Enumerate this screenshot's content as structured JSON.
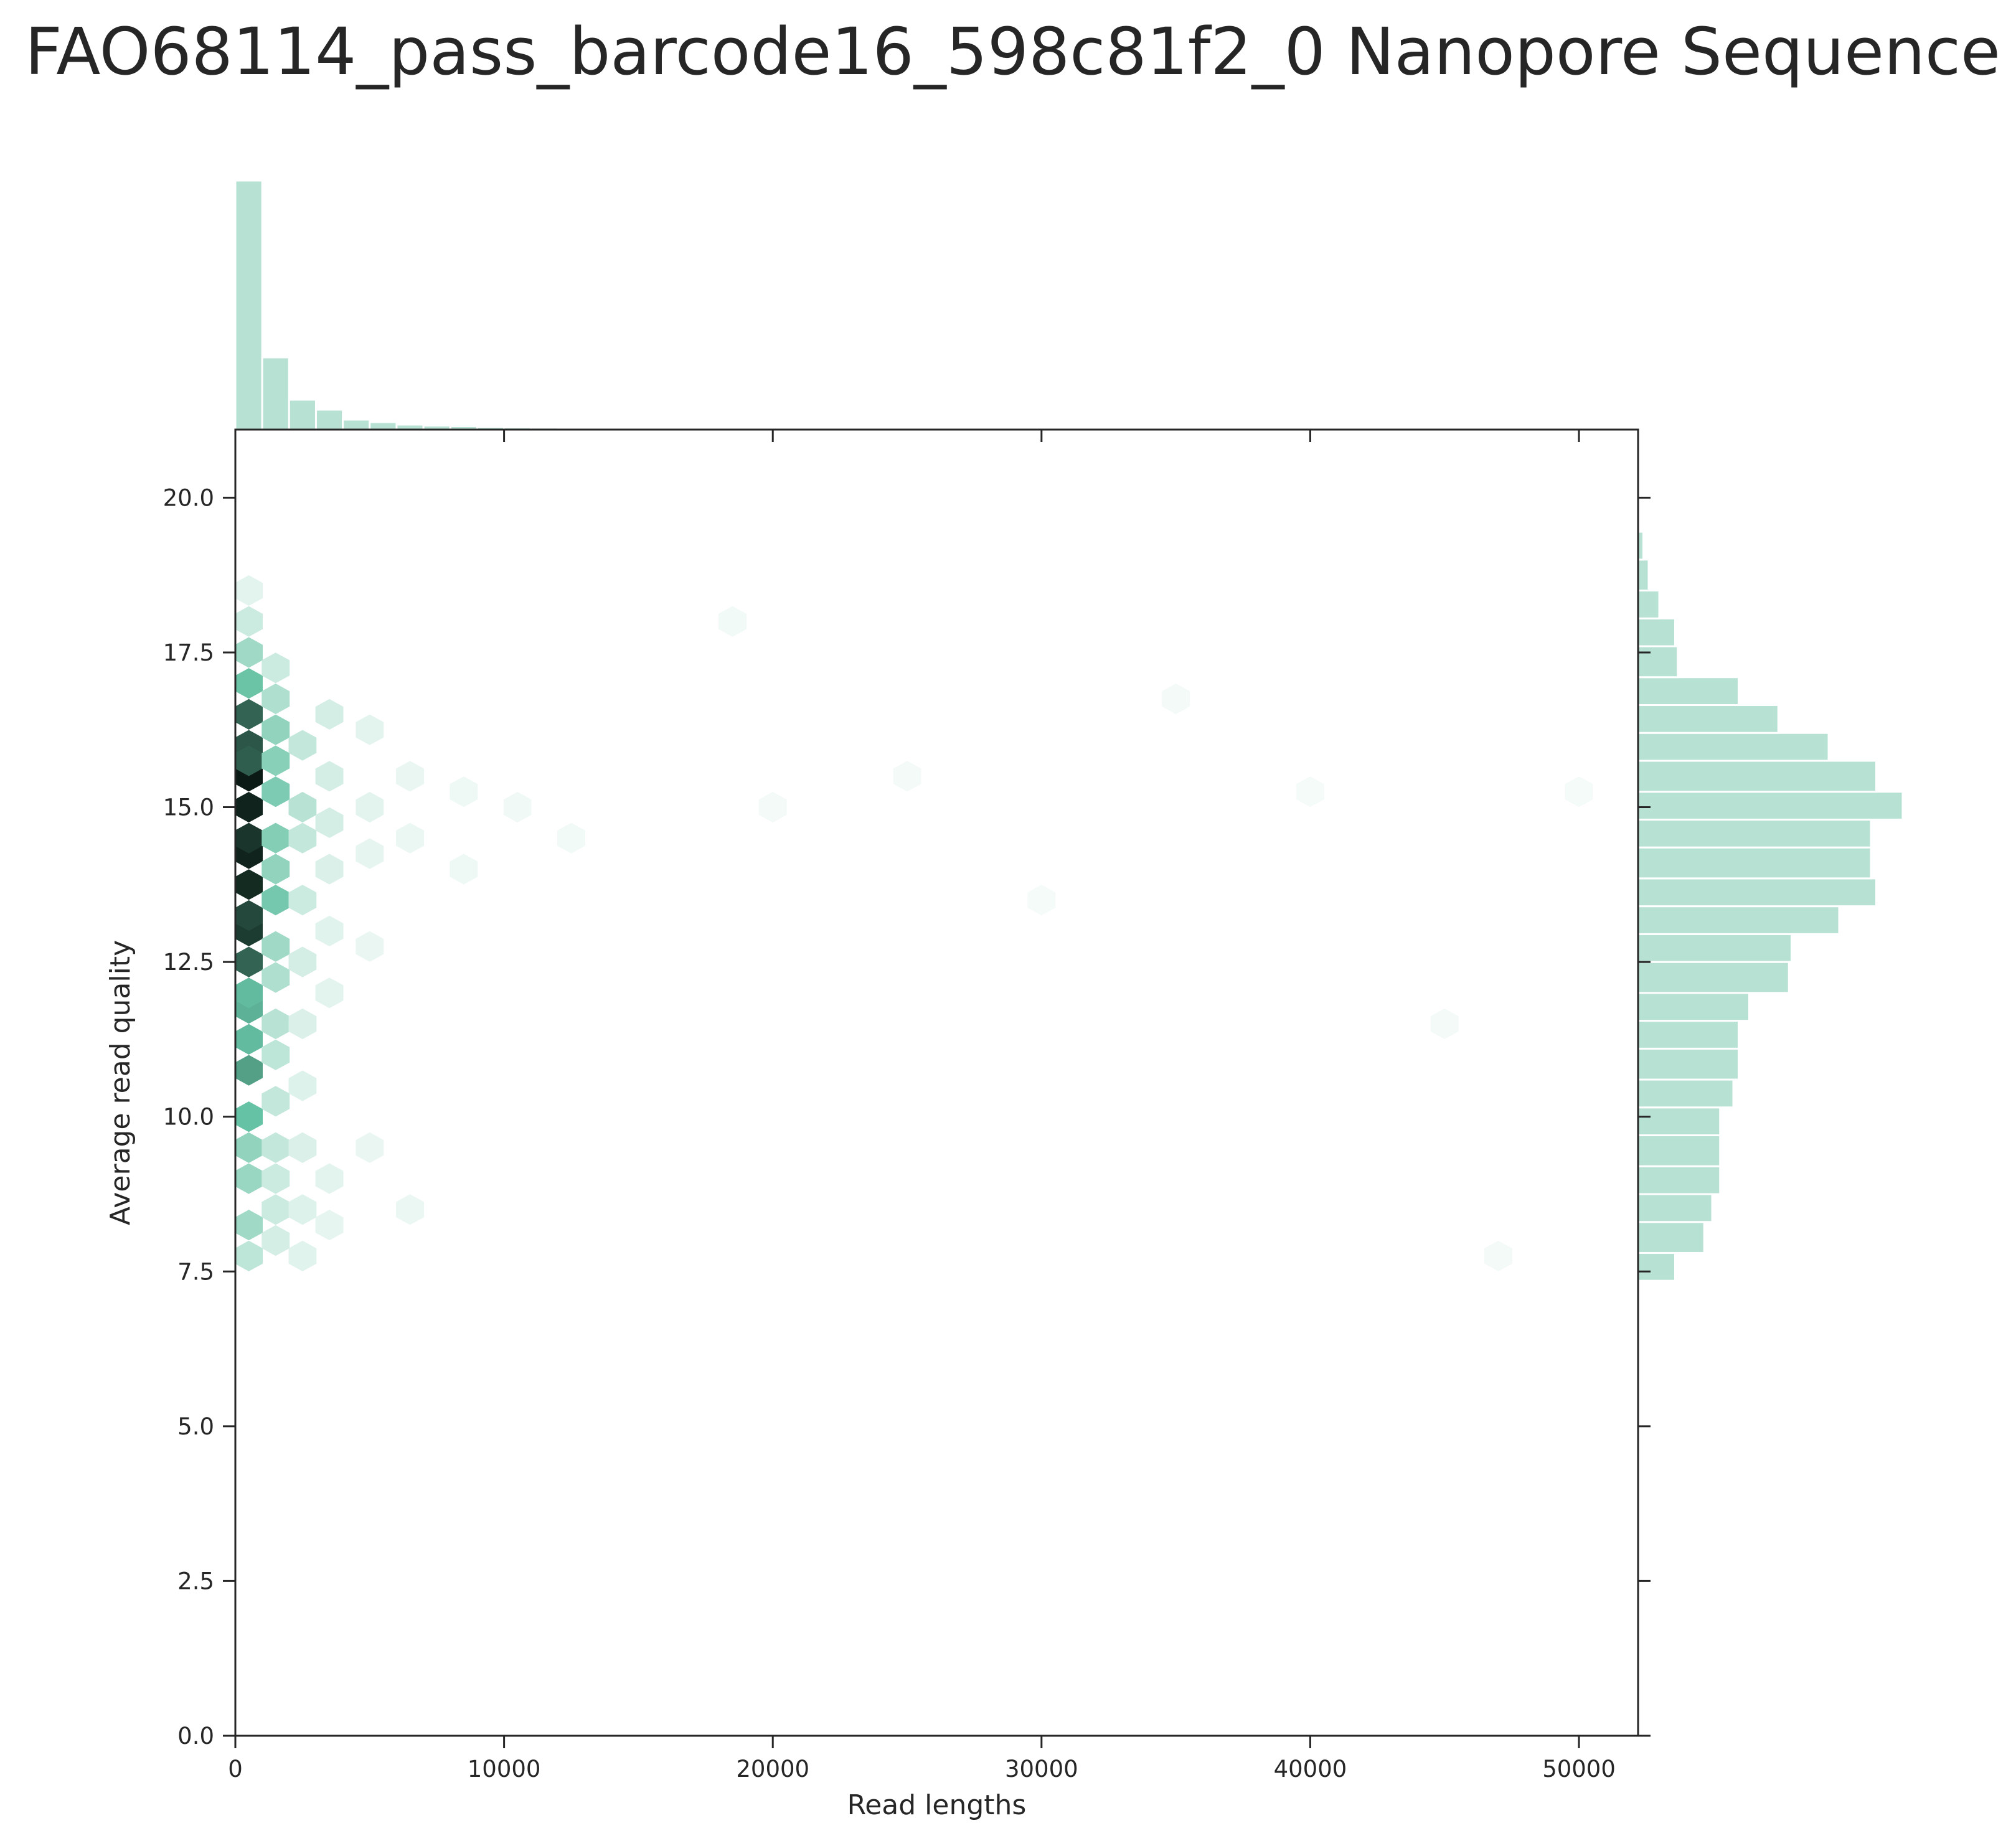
{
  "title": "FAO68114_pass_barcode16_598c81f2_0 Nanopore Sequence",
  "chart_data": {
    "type": "hexbin",
    "title": "FAO68114_pass_barcode16_598c81f2_0 Nanopore Sequence",
    "xlabel": "Read lengths",
    "ylabel": "Average read quality",
    "xlim": [
      0,
      52200
    ],
    "ylim": [
      0,
      21.1
    ],
    "xticks": [
      0,
      10000,
      20000,
      30000,
      40000,
      50000
    ],
    "xtick_labels": [
      "0",
      "10000",
      "20000",
      "30000",
      "40000",
      "50000"
    ],
    "yticks": [
      0,
      2.5,
      5,
      7.5,
      10,
      12.5,
      15,
      17.5,
      20
    ],
    "ytick_labels": [
      "0.0",
      "2.5",
      "5.0",
      "7.5",
      "10.0",
      "12.5",
      "15.0",
      "17.5",
      "20.0"
    ],
    "grid": false,
    "colors": {
      "bar": "#b7e1d3",
      "hex_light": "#f7fcfa",
      "hex_mid": "#66c2a4",
      "hex_dark": "#0b1a14",
      "axis": "#262626"
    },
    "marginal_x_hist": {
      "bin_width": 1000,
      "counts": [
        100,
        29,
        12,
        8,
        4,
        3,
        2,
        1.6,
        1.4,
        1.1,
        0.9,
        0.8,
        0.6,
        0.5,
        0.4,
        0.3,
        0.3,
        0.25,
        0.2,
        0.2,
        0.18,
        0.15,
        0.12,
        0.1,
        0.1,
        0.1,
        0.08,
        0.08,
        0.08,
        0.08,
        0.3
      ]
    },
    "marginal_y_hist": {
      "bin_edges": [
        7.35,
        7.8,
        8.3,
        8.75,
        9.2,
        9.7,
        10.15,
        10.6,
        11.1,
        11.55,
        12.0,
        12.5,
        12.95,
        13.4,
        13.85,
        14.35,
        14.8,
        15.25,
        15.75,
        16.2,
        16.65,
        17.1,
        17.6,
        18.05,
        18.5,
        19.0,
        19.45
      ],
      "counts": [
        7,
        12.5,
        14,
        15.5,
        15.5,
        15.5,
        18,
        19,
        19,
        21,
        28.5,
        29,
        38,
        45,
        44,
        44,
        50,
        45,
        36,
        26.5,
        19,
        7.5,
        7,
        4,
        2,
        1
      ]
    },
    "hexbin": {
      "gridsize_x": 50,
      "cells": [
        [
          500,
          15.5,
          1.0
        ],
        [
          500,
          15.0,
          0.97
        ],
        [
          500,
          14.25,
          0.97
        ],
        [
          500,
          13.75,
          0.95
        ],
        [
          500,
          13.0,
          0.9
        ],
        [
          500,
          14.5,
          0.92
        ],
        [
          500,
          16.0,
          0.82
        ],
        [
          500,
          16.5,
          0.78
        ],
        [
          500,
          15.75,
          0.8
        ],
        [
          500,
          12.5,
          0.78
        ],
        [
          500,
          13.25,
          0.86
        ],
        [
          500,
          11.75,
          0.55
        ],
        [
          500,
          11.25,
          0.52
        ],
        [
          500,
          10.75,
          0.6
        ],
        [
          500,
          10.0,
          0.5
        ],
        [
          500,
          12.0,
          0.52
        ],
        [
          500,
          17.0,
          0.48
        ],
        [
          500,
          9.5,
          0.35
        ],
        [
          500,
          9.0,
          0.32
        ],
        [
          500,
          8.25,
          0.3
        ],
        [
          500,
          7.75,
          0.2
        ],
        [
          500,
          17.5,
          0.3
        ],
        [
          500,
          18.0,
          0.15
        ],
        [
          500,
          18.5,
          0.07
        ],
        [
          1500,
          15.25,
          0.42
        ],
        [
          1500,
          14.5,
          0.4
        ],
        [
          1500,
          14.0,
          0.35
        ],
        [
          1500,
          13.5,
          0.45
        ],
        [
          1500,
          16.25,
          0.35
        ],
        [
          1500,
          15.75,
          0.38
        ],
        [
          1500,
          12.75,
          0.3
        ],
        [
          1500,
          12.25,
          0.25
        ],
        [
          1500,
          11.5,
          0.22
        ],
        [
          1500,
          11.0,
          0.2
        ],
        [
          1500,
          10.25,
          0.18
        ],
        [
          1500,
          9.5,
          0.18
        ],
        [
          1500,
          9.0,
          0.15
        ],
        [
          1500,
          8.5,
          0.15
        ],
        [
          1500,
          8.0,
          0.12
        ],
        [
          1500,
          16.75,
          0.25
        ],
        [
          1500,
          17.25,
          0.15
        ],
        [
          2500,
          15.0,
          0.22
        ],
        [
          2500,
          14.5,
          0.18
        ],
        [
          2500,
          16.0,
          0.18
        ],
        [
          2500,
          13.5,
          0.15
        ],
        [
          2500,
          12.5,
          0.12
        ],
        [
          2500,
          11.5,
          0.1
        ],
        [
          2500,
          10.5,
          0.09
        ],
        [
          2500,
          9.5,
          0.1
        ],
        [
          2500,
          8.5,
          0.09
        ],
        [
          2500,
          7.75,
          0.08
        ],
        [
          3500,
          15.5,
          0.12
        ],
        [
          3500,
          14.75,
          0.12
        ],
        [
          3500,
          14.0,
          0.1
        ],
        [
          3500,
          16.5,
          0.12
        ],
        [
          3500,
          13.0,
          0.08
        ],
        [
          3500,
          12.0,
          0.07
        ],
        [
          3500,
          9.0,
          0.07
        ],
        [
          3500,
          8.25,
          0.06
        ],
        [
          5000,
          15.0,
          0.07
        ],
        [
          5000,
          14.25,
          0.06
        ],
        [
          5000,
          16.25,
          0.07
        ],
        [
          5000,
          12.75,
          0.05
        ],
        [
          5000,
          9.5,
          0.05
        ],
        [
          6500,
          15.5,
          0.05
        ],
        [
          6500,
          14.5,
          0.04
        ],
        [
          6500,
          8.5,
          0.04
        ],
        [
          8500,
          15.25,
          0.03
        ],
        [
          8500,
          14.0,
          0.03
        ],
        [
          10500,
          15.0,
          0.025
        ],
        [
          12500,
          14.5,
          0.02
        ],
        [
          18500,
          18.0,
          0.02
        ],
        [
          20000,
          15.0,
          0.015
        ],
        [
          25000,
          15.5,
          0.015
        ],
        [
          30000,
          13.5,
          0.012
        ],
        [
          35000,
          16.75,
          0.015
        ],
        [
          40000,
          15.25,
          0.012
        ],
        [
          45000,
          11.5,
          0.015
        ],
        [
          47000,
          7.75,
          0.015
        ],
        [
          50000,
          15.25,
          0.01
        ]
      ]
    }
  }
}
